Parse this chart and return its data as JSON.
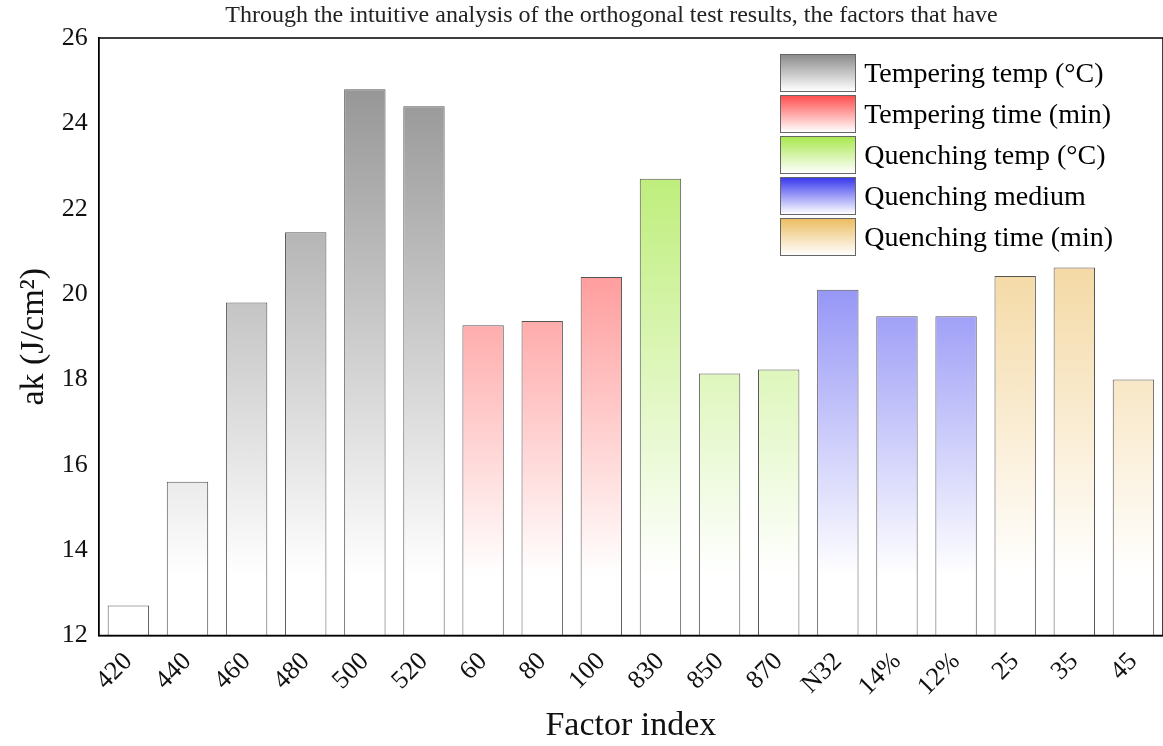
{
  "chart_data": {
    "type": "bar",
    "xlabel": "Factor index",
    "ylabel": "ak (J/cm²)",
    "annotations": [
      "Through the intuitive analysis of the orthogonal test results, the factors that have"
    ],
    "categories": [
      "420",
      "440",
      "460",
      "480",
      "500",
      "520",
      "60",
      "80",
      "100",
      "830",
      "850",
      "870",
      "N32",
      "14%",
      "12%",
      "25",
      "35",
      "45"
    ],
    "ylim": [
      12,
      26
    ],
    "yticks": [
      12,
      14,
      16,
      18,
      20,
      22,
      24,
      26
    ],
    "grid": false,
    "legend": "top right",
    "series": [
      {
        "name": "Tempering temp (°C)",
        "color": "#8c8c8c",
        "values": [
          12.7,
          15.6,
          19.8,
          21.45,
          24.8,
          24.4,
          null,
          null,
          null,
          null,
          null,
          null,
          null,
          null,
          null,
          null,
          null,
          null
        ]
      },
      {
        "name": "Tempering time (min)",
        "color": "#ff4f4f",
        "values": [
          null,
          null,
          null,
          null,
          null,
          null,
          19.27,
          19.37,
          20.4,
          null,
          null,
          null,
          null,
          null,
          null,
          null,
          null,
          null
        ]
      },
      {
        "name": "Quenching temp (°C)",
        "color": "#a8e84e",
        "values": [
          null,
          null,
          null,
          null,
          null,
          null,
          null,
          null,
          null,
          22.7,
          18.14,
          18.23,
          null,
          null,
          null,
          null,
          null,
          null
        ]
      },
      {
        "name": "Quenching medium",
        "color": "#3a3aef",
        "values": [
          null,
          null,
          null,
          null,
          null,
          null,
          null,
          null,
          null,
          null,
          null,
          null,
          20.1,
          19.48,
          19.48,
          null,
          null,
          null
        ]
      },
      {
        "name": "Quenching time (min)",
        "color": "#ecbd62",
        "values": [
          null,
          null,
          null,
          null,
          null,
          null,
          null,
          null,
          null,
          null,
          null,
          null,
          null,
          null,
          null,
          20.42,
          20.62,
          18.0
        ]
      }
    ]
  }
}
